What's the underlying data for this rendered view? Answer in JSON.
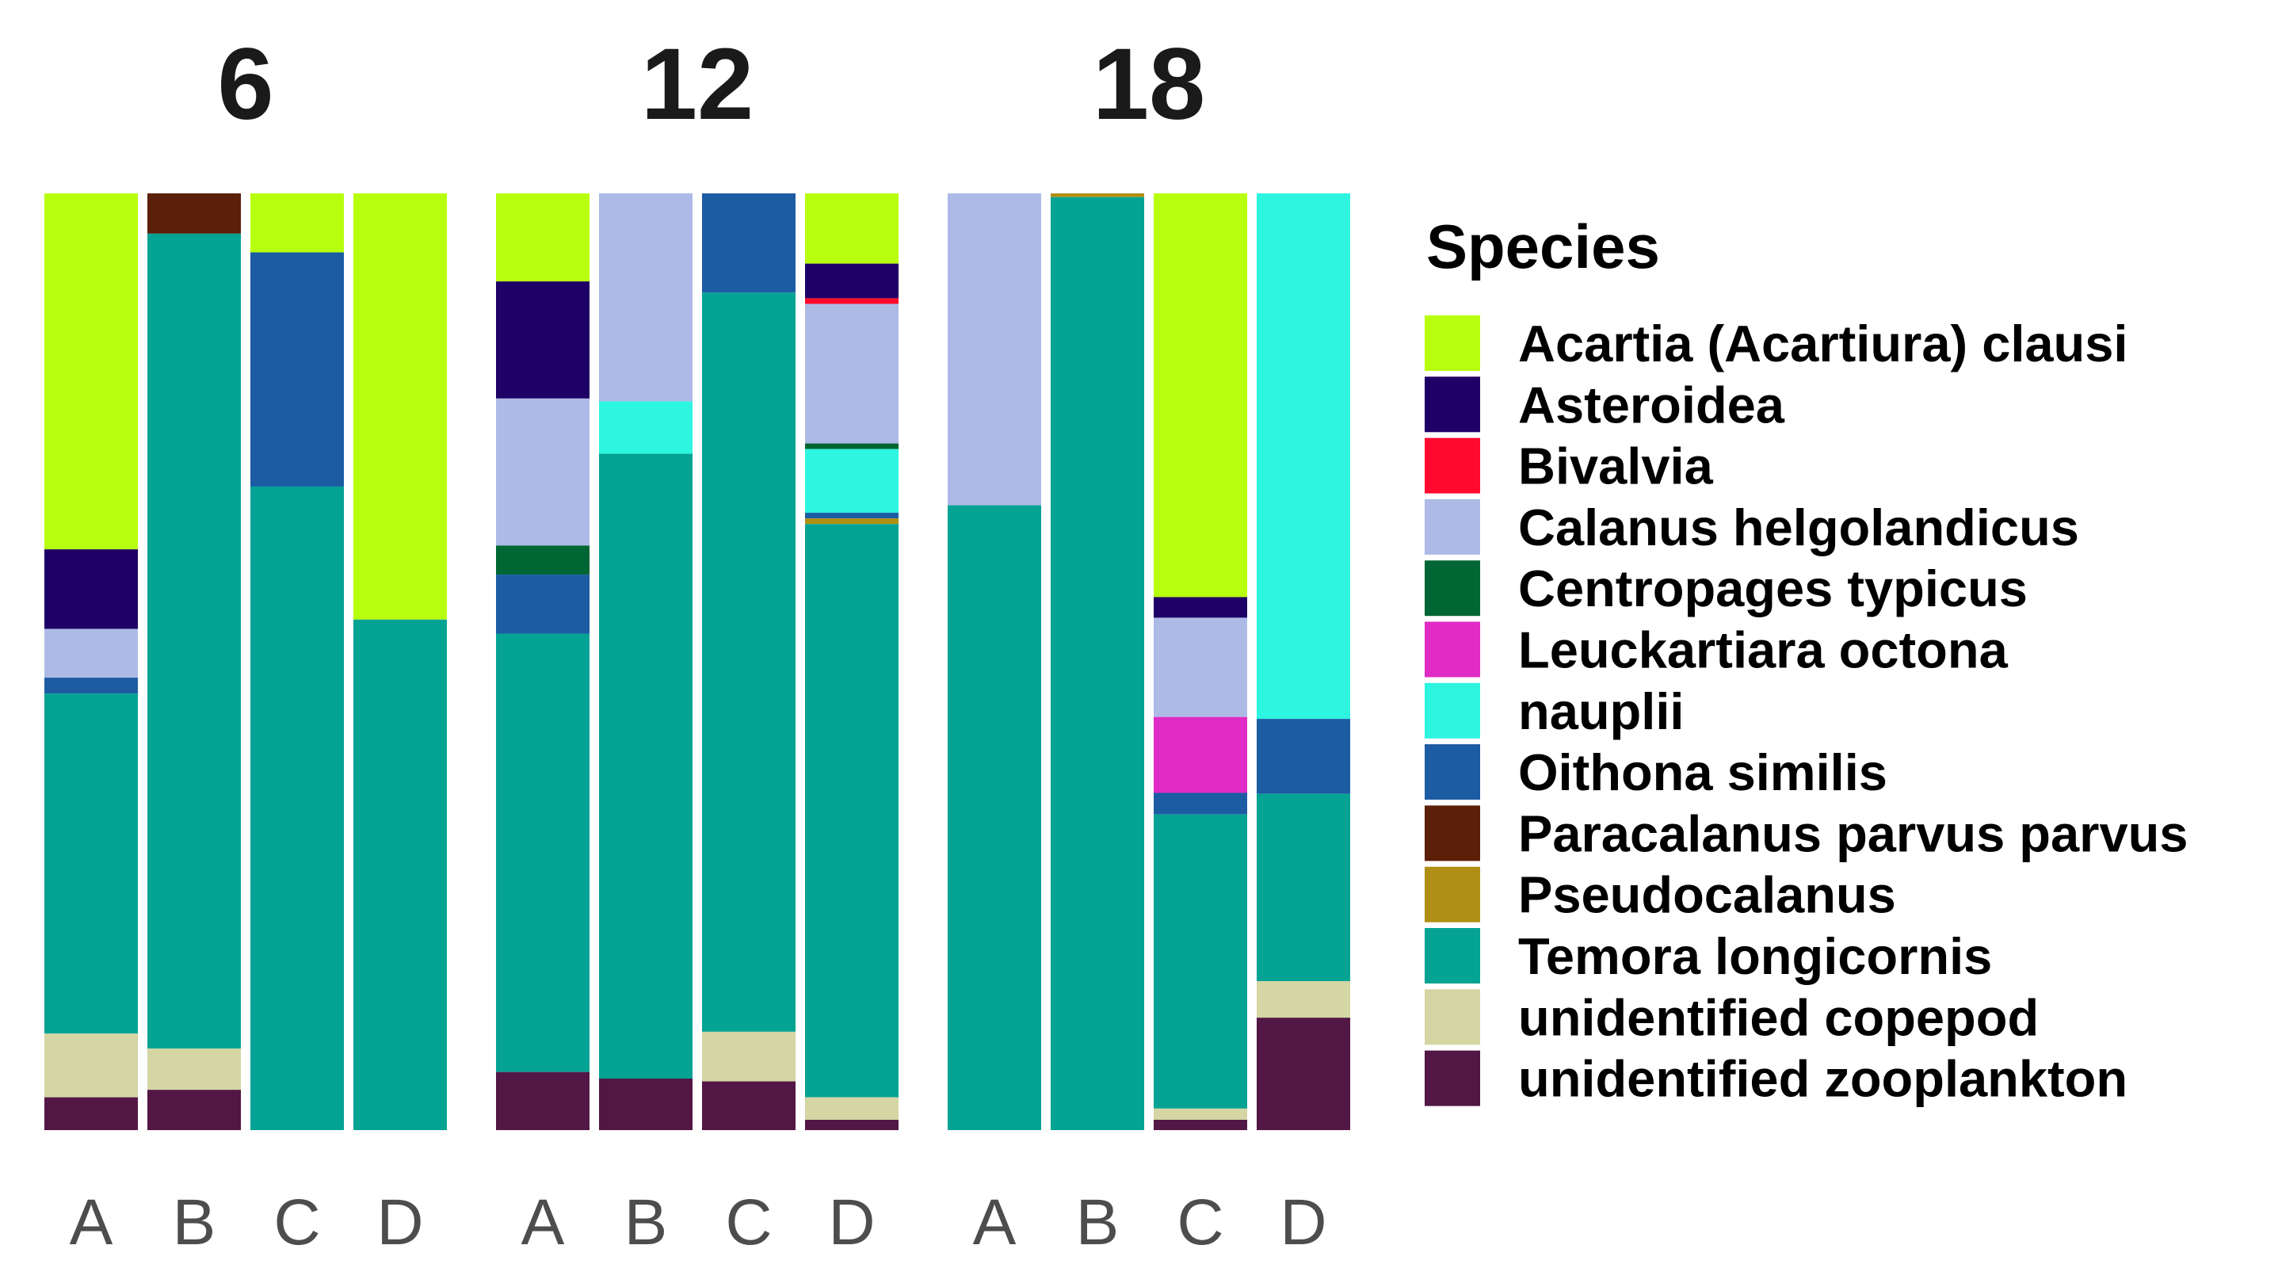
{
  "chart_data": {
    "type": "bar",
    "stacked": true,
    "normalized": true,
    "facets": [
      "6",
      "12",
      "18"
    ],
    "categories": [
      "A",
      "B",
      "C",
      "D"
    ],
    "legend": {
      "title": "Species",
      "position": "right"
    },
    "grid": false,
    "ylim": [
      0,
      1
    ],
    "colors": {
      "Acartia (Acartiura) clausi": "#b8ff0f",
      "Asteroidea": "#1f0066",
      "Bivalvia": "#ff0a2e",
      "Calanus helgolandicus": "#adbae6",
      "Centropages typicus": "#006633",
      "Leuckartiara octona": "#e02bc4",
      "nauplii": "#2ef5e0",
      "Oithona similis": "#1c5ca3",
      "Paracalanus parvus parvus": "#5c1f0a",
      "Pseudocalanus": "#b08f14",
      "Temora longicornis": "#05a394",
      "unidentified copepod": "#d4d6a3",
      "unidentified zooplankton": "#521745"
    },
    "species": [
      "Acartia (Acartiura) clausi",
      "Asteroidea",
      "Bivalvia",
      "Calanus helgolandicus",
      "Centropages typicus",
      "Leuckartiara octona",
      "nauplii",
      "Oithona similis",
      "Paracalanus parvus parvus",
      "Pseudocalanus",
      "Temora longicornis",
      "unidentified copepod",
      "unidentified zooplankton"
    ],
    "bars": [
      {
        "facet": "6",
        "category": "A",
        "segments": [
          {
            "species": "Acartia (Acartiura) clausi",
            "value": 0.38
          },
          {
            "species": "Asteroidea",
            "value": 0.085
          },
          {
            "species": "Calanus helgolandicus",
            "value": 0.052
          },
          {
            "species": "Oithona similis",
            "value": 0.017
          },
          {
            "species": "Temora longicornis",
            "value": 0.363
          },
          {
            "species": "unidentified copepod",
            "value": 0.068
          },
          {
            "species": "unidentified zooplankton",
            "value": 0.035
          }
        ]
      },
      {
        "facet": "6",
        "category": "B",
        "segments": [
          {
            "species": "Paracalanus parvus parvus",
            "value": 0.043
          },
          {
            "species": "Temora longicornis",
            "value": 0.87
          },
          {
            "species": "unidentified copepod",
            "value": 0.044
          },
          {
            "species": "unidentified zooplankton",
            "value": 0.043
          }
        ]
      },
      {
        "facet": "6",
        "category": "C",
        "segments": [
          {
            "species": "Acartia (Acartiura) clausi",
            "value": 0.063
          },
          {
            "species": "Oithona similis",
            "value": 0.25
          },
          {
            "species": "Temora longicornis",
            "value": 0.687
          }
        ]
      },
      {
        "facet": "6",
        "category": "D",
        "segments": [
          {
            "species": "Acartia (Acartiura) clausi",
            "value": 0.455
          },
          {
            "species": "Temora longicornis",
            "value": 0.545
          }
        ]
      },
      {
        "facet": "12",
        "category": "A",
        "segments": [
          {
            "species": "Acartia (Acartiura) clausi",
            "value": 0.094
          },
          {
            "species": "Asteroidea",
            "value": 0.125
          },
          {
            "species": "Calanus helgolandicus",
            "value": 0.157
          },
          {
            "species": "Centropages typicus",
            "value": 0.031
          },
          {
            "species": "Oithona similis",
            "value": 0.063
          },
          {
            "species": "Temora longicornis",
            "value": 0.468
          },
          {
            "species": "unidentified zooplankton",
            "value": 0.062
          }
        ]
      },
      {
        "facet": "12",
        "category": "B",
        "segments": [
          {
            "species": "Calanus helgolandicus",
            "value": 0.222
          },
          {
            "species": "nauplii",
            "value": 0.056
          },
          {
            "species": "Temora longicornis",
            "value": 0.667
          },
          {
            "species": "unidentified zooplankton",
            "value": 0.055
          }
        ]
      },
      {
        "facet": "12",
        "category": "C",
        "segments": [
          {
            "species": "Oithona similis",
            "value": 0.106
          },
          {
            "species": "Temora longicornis",
            "value": 0.789
          },
          {
            "species": "unidentified copepod",
            "value": 0.053
          },
          {
            "species": "unidentified zooplankton",
            "value": 0.052
          }
        ]
      },
      {
        "facet": "12",
        "category": "D",
        "segments": [
          {
            "species": "Acartia (Acartiura) clausi",
            "value": 0.075
          },
          {
            "species": "Asteroidea",
            "value": 0.037
          },
          {
            "species": "Bivalvia",
            "value": 0.006
          },
          {
            "species": "Calanus helgolandicus",
            "value": 0.149
          },
          {
            "species": "Centropages typicus",
            "value": 0.006
          },
          {
            "species": "nauplii",
            "value": 0.068
          },
          {
            "species": "Oithona similis",
            "value": 0.006
          },
          {
            "species": "Pseudocalanus",
            "value": 0.006
          },
          {
            "species": "Temora longicornis",
            "value": 0.612
          },
          {
            "species": "unidentified copepod",
            "value": 0.024
          },
          {
            "species": "unidentified zooplankton",
            "value": 0.011
          }
        ]
      },
      {
        "facet": "18",
        "category": "A",
        "segments": [
          {
            "species": "Calanus helgolandicus",
            "value": 0.333
          },
          {
            "species": "Temora longicornis",
            "value": 0.667
          }
        ]
      },
      {
        "facet": "18",
        "category": "B",
        "segments": [
          {
            "species": "Pseudocalanus",
            "value": 0.004
          },
          {
            "species": "Temora longicornis",
            "value": 0.996
          }
        ]
      },
      {
        "facet": "18",
        "category": "C",
        "segments": [
          {
            "species": "Acartia (Acartiura) clausi",
            "value": 0.431
          },
          {
            "species": "Asteroidea",
            "value": 0.022
          },
          {
            "species": "Calanus helgolandicus",
            "value": 0.106
          },
          {
            "species": "Leuckartiara octona",
            "value": 0.081
          },
          {
            "species": "Oithona similis",
            "value": 0.023
          },
          {
            "species": "Temora longicornis",
            "value": 0.314
          },
          {
            "species": "unidentified copepod",
            "value": 0.012
          },
          {
            "species": "unidentified zooplankton",
            "value": 0.011
          }
        ]
      },
      {
        "facet": "18",
        "category": "D",
        "segments": [
          {
            "species": "nauplii",
            "value": 0.561
          },
          {
            "species": "Oithona similis",
            "value": 0.08
          },
          {
            "species": "Temora longicornis",
            "value": 0.2
          },
          {
            "species": "unidentified copepod",
            "value": 0.039
          },
          {
            "species": "unidentified zooplankton",
            "value": 0.12
          }
        ]
      }
    ]
  }
}
